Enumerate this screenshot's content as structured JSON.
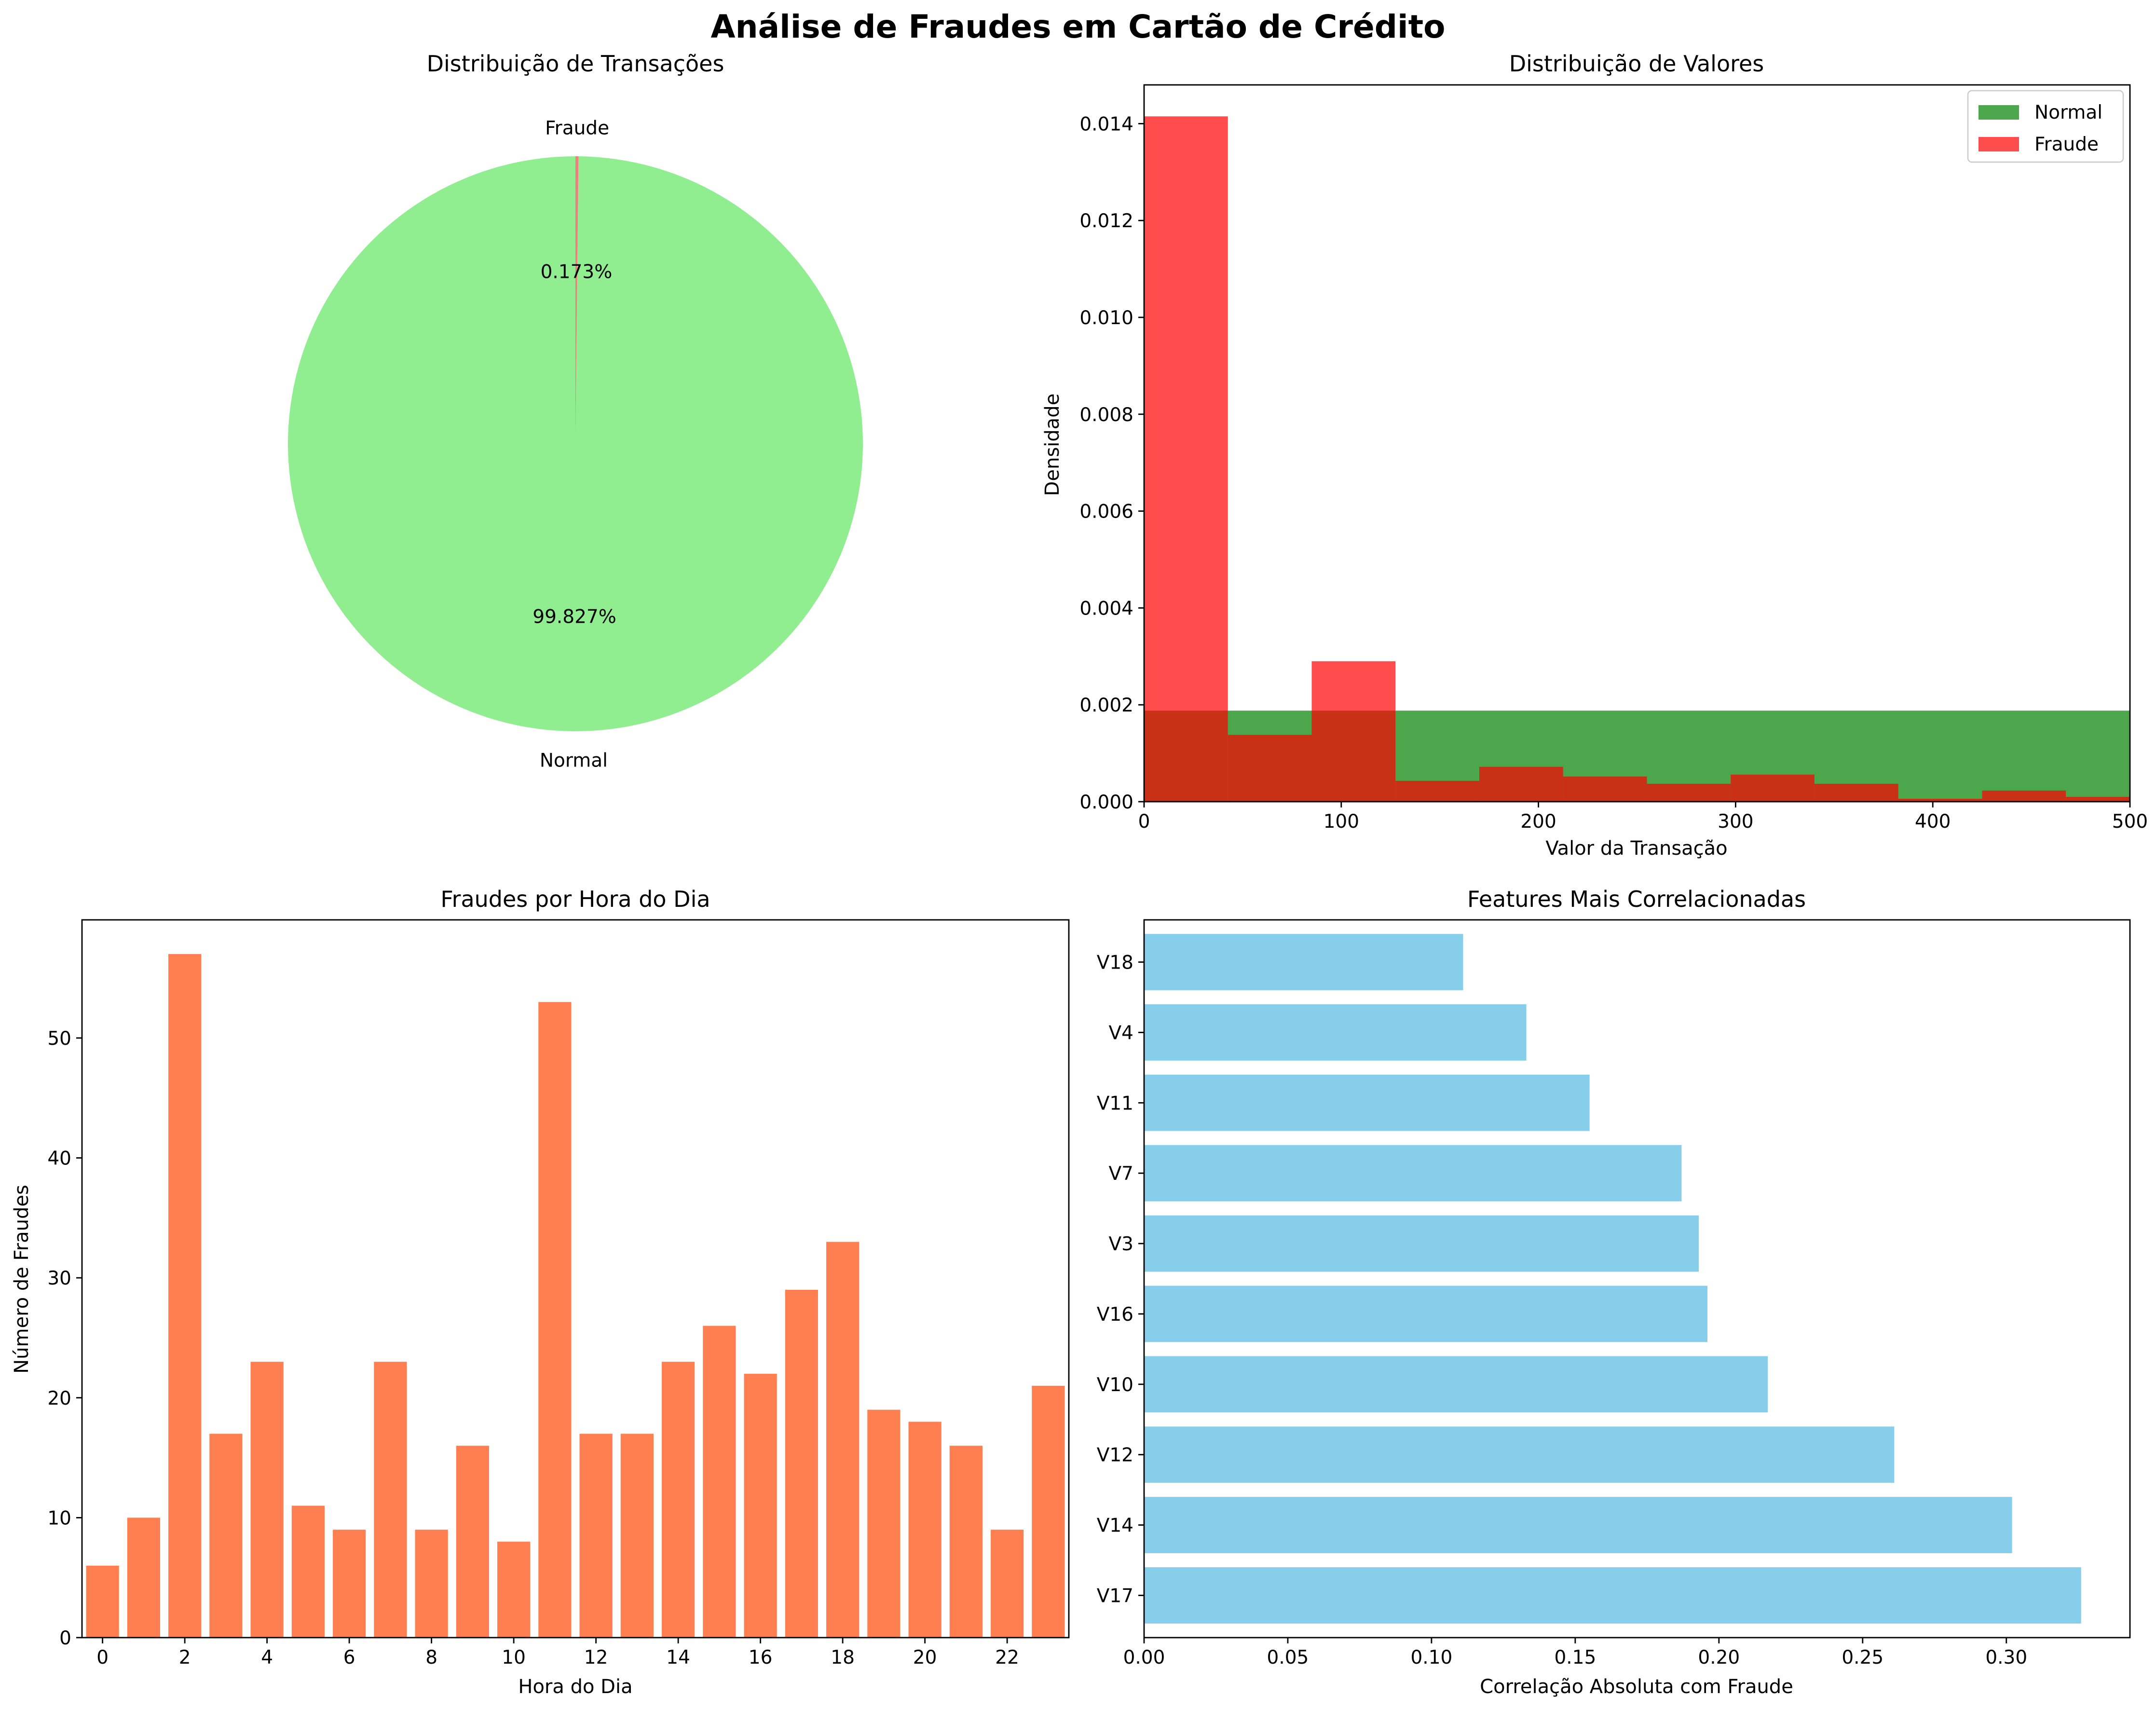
{
  "figure": {
    "title": "Análise de Fraudes em Cartão de Crédito"
  },
  "chart_data": [
    {
      "type": "pie",
      "title": "Distribuição de Transações",
      "labels": [
        "Normal",
        "Fraude"
      ],
      "values": [
        99.827,
        0.173
      ],
      "value_labels": [
        "99.827%",
        "0.173%"
      ],
      "colors": [
        "#90ee90",
        "#f08080"
      ]
    },
    {
      "type": "histogram",
      "title": "Distribuição de Valores",
      "xlabel": "Valor da Transação",
      "ylabel": "Densidade",
      "xlim": [
        0,
        500
      ],
      "ylim": [
        0,
        0.0148
      ],
      "xticks": [
        0,
        100,
        200,
        300,
        400,
        500
      ],
      "yticks": [
        0,
        0.002,
        0.004,
        0.006,
        0.008,
        0.01,
        0.012,
        0.014
      ],
      "ytick_labels": [
        "0.000",
        "0.002",
        "0.004",
        "0.006",
        "0.008",
        "0.010",
        "0.012",
        "0.014"
      ],
      "legend": "upper right",
      "series": [
        {
          "name": "Normal",
          "color": "#008000",
          "opacity": 0.7,
          "bins": [
            [
              0,
              500,
              0.00188
            ]
          ]
        },
        {
          "name": "Fraude",
          "color": "#ff0000",
          "opacity": 0.7,
          "bins": [
            [
              0,
              42.5,
              0.01415
            ],
            [
              42.5,
              85,
              0.00138
            ],
            [
              85,
              127.5,
              0.0029
            ],
            [
              127.5,
              170,
              0.00043
            ],
            [
              170,
              212.5,
              0.00072
            ],
            [
              212.5,
              255,
              0.00052
            ],
            [
              255,
              297.5,
              0.00037
            ],
            [
              297.5,
              340,
              0.00056
            ],
            [
              340,
              382.5,
              0.00037
            ],
            [
              382.5,
              425,
              6e-05
            ],
            [
              425,
              467.5,
              0.00023
            ],
            [
              467.5,
              510,
              0.0001
            ]
          ]
        }
      ]
    },
    {
      "type": "bar",
      "title": "Fraudes por Hora do Dia",
      "xlabel": "Hora do Dia",
      "ylabel": "Número de Fraudes",
      "color": "#ff7f50",
      "x": [
        0,
        1,
        2,
        3,
        4,
        5,
        6,
        7,
        8,
        9,
        10,
        11,
        12,
        13,
        14,
        15,
        16,
        17,
        18,
        19,
        20,
        21,
        22,
        23
      ],
      "values": [
        6,
        10,
        57,
        17,
        23,
        11,
        9,
        23,
        9,
        16,
        8,
        53,
        17,
        17,
        23,
        26,
        22,
        29,
        33,
        19,
        18,
        16,
        9,
        21
      ],
      "xticks": [
        0,
        2,
        4,
        6,
        8,
        10,
        12,
        14,
        16,
        18,
        20,
        22
      ],
      "yticks": [
        0,
        10,
        20,
        30,
        40,
        50
      ],
      "xlim": [
        -0.5,
        23.5
      ],
      "ylim": [
        0,
        59.85
      ]
    },
    {
      "type": "barh",
      "title": "Features Mais Correlacionadas",
      "xlabel": "Correlação Absoluta com Fraude",
      "color": "#87ceeb",
      "categories": [
        "V17",
        "V14",
        "V12",
        "V10",
        "V16",
        "V3",
        "V7",
        "V11",
        "V4",
        "V18"
      ],
      "values": [
        0.326,
        0.302,
        0.261,
        0.217,
        0.196,
        0.193,
        0.187,
        0.155,
        0.133,
        0.111
      ],
      "xticks": [
        0,
        0.05,
        0.1,
        0.15,
        0.2,
        0.25,
        0.3
      ],
      "xtick_labels": [
        "0.00",
        "0.05",
        "0.10",
        "0.15",
        "0.20",
        "0.25",
        "0.30"
      ],
      "xlim": [
        0,
        0.343
      ]
    }
  ]
}
